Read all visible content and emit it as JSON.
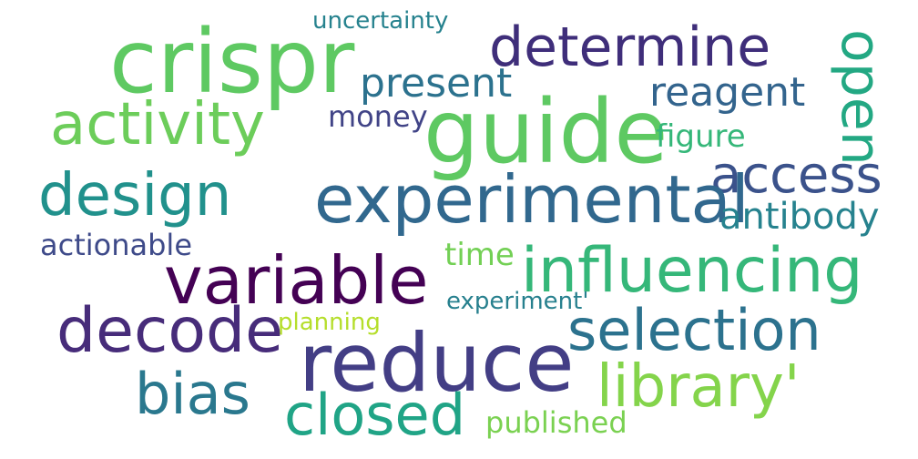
{
  "words": {
    "uncertainty": "uncertainty",
    "crispr": "crispr",
    "determine": "determine",
    "present": "present",
    "reagent": "reagent",
    "open": "open",
    "activity": "activity",
    "money": "money",
    "guide": "guide",
    "figure": "figure",
    "access": "access",
    "design": "design",
    "experimental": "experimental",
    "antibody": "antibody",
    "actionable": "actionable",
    "time": "time",
    "influencing": "influencing",
    "variable": "variable",
    "experiment": "experiment'",
    "planning": "planning",
    "decode": "decode",
    "selection": "selection",
    "reduce": "reduce",
    "library": "library'",
    "bias": "bias",
    "closed": "closed",
    "published": "published"
  },
  "colors": {
    "background": "#ffffff",
    "palette": "viridis"
  }
}
